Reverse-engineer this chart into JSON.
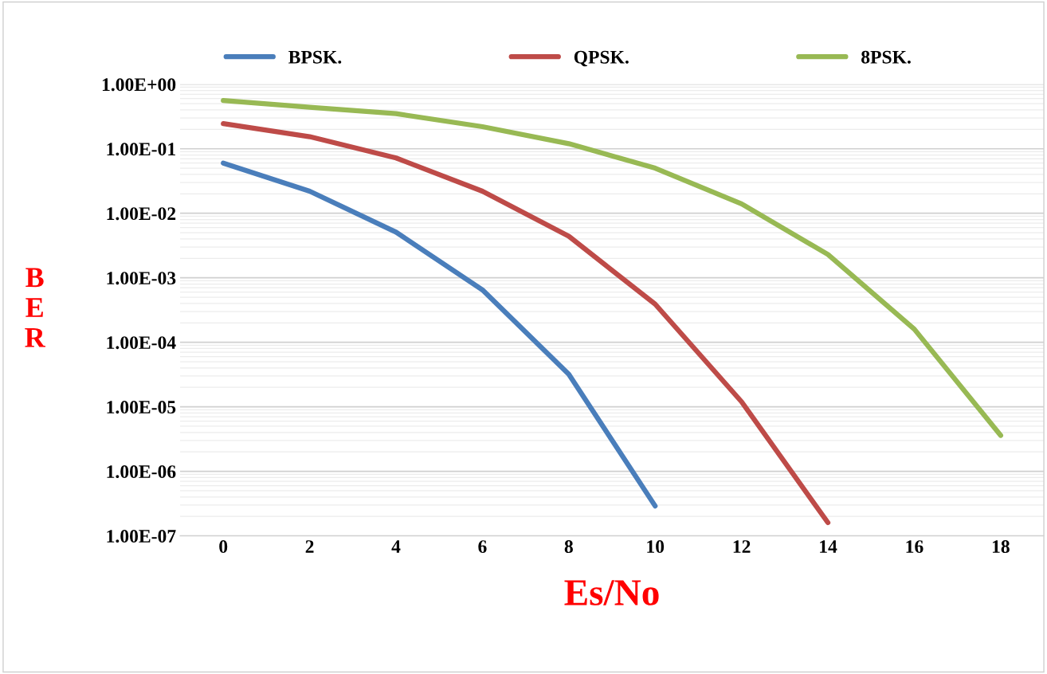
{
  "chart_data": {
    "type": "line",
    "xlabel": "Es/No",
    "ylabel": "BER",
    "categories": [
      "0",
      "2",
      "4",
      "6",
      "8",
      "10",
      "12",
      "14",
      "16",
      "18"
    ],
    "series": [
      {
        "name": "BPSK.",
        "color": "#4a7ebb",
        "values": [
          0.06,
          0.022,
          0.0051,
          0.00065,
          3.2e-05,
          2.9e-07,
          null,
          null,
          null,
          null
        ]
      },
      {
        "name": "QPSK.",
        "color": "#be4b48",
        "values": [
          0.245,
          0.154,
          0.072,
          0.022,
          0.0044,
          0.00039,
          1.2e-05,
          1.6e-07,
          null,
          null
        ]
      },
      {
        "name": "8PSK.",
        "color": "#98b954",
        "values": [
          0.56,
          0.44,
          0.35,
          0.22,
          0.12,
          0.05,
          0.014,
          0.0023,
          0.00016,
          3.6e-06
        ]
      }
    ],
    "log": true,
    "ylim": [
      1e-07,
      1
    ],
    "yticks": [
      {
        "value": 1e-07,
        "label": "1.00E-07"
      },
      {
        "value": 1e-06,
        "label": "1.00E-06"
      },
      {
        "value": 1e-05,
        "label": "1.00E-05"
      },
      {
        "value": 0.0001,
        "label": "1.00E-04"
      },
      {
        "value": 0.001,
        "label": "1.00E-03"
      },
      {
        "value": 0.01,
        "label": "1.00E-02"
      },
      {
        "value": 0.1,
        "label": "1.00E-01"
      },
      {
        "value": 1,
        "label": "1.00E+00"
      }
    ],
    "grid": "y",
    "legend": "top",
    "marker": "none",
    "line_style": "solid"
  }
}
